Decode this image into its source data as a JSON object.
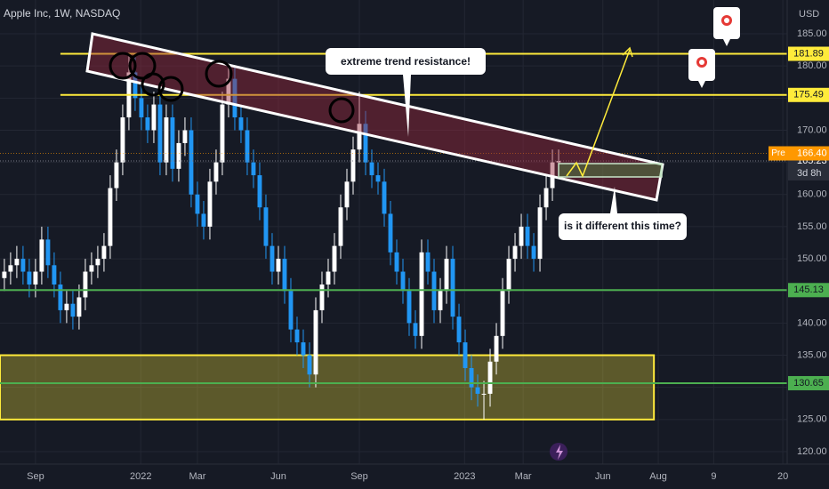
{
  "chart_data": {
    "type": "candlestick",
    "title": "Apple Inc, 1W, NASDAQ",
    "currency": "USD",
    "x": [
      -5,
      -4,
      -3,
      -2,
      -1,
      0,
      1,
      2,
      3,
      4,
      5,
      6,
      7,
      8,
      9,
      10,
      11,
      12,
      13,
      14,
      15,
      16,
      17,
      18,
      19,
      20,
      21,
      22,
      23,
      24,
      25,
      26,
      27,
      28,
      29,
      30,
      31,
      32,
      33,
      34,
      35,
      36,
      37,
      38,
      39,
      40,
      41,
      42,
      43,
      44,
      45,
      46,
      47,
      48,
      49,
      50,
      51,
      52,
      53,
      54,
      55,
      56,
      57,
      58,
      59,
      60,
      61,
      62,
      63,
      64,
      65,
      66,
      67,
      68,
      69,
      70,
      71,
      72,
      73,
      74,
      75,
      76,
      77,
      78,
      79,
      80,
      81,
      82,
      83,
      84
    ],
    "open": [
      147,
      148,
      149,
      150,
      148,
      146,
      148,
      153,
      149,
      146,
      142,
      143,
      141,
      144,
      148,
      149,
      150,
      152,
      161,
      165,
      172,
      179,
      175,
      172,
      170,
      174,
      165,
      172,
      164,
      168,
      170,
      160,
      157,
      155,
      162,
      165,
      174,
      178,
      172,
      170,
      165,
      163,
      158,
      152,
      148,
      150,
      145,
      139,
      137,
      135,
      132,
      142,
      146,
      148,
      152,
      158,
      162,
      167,
      171,
      165,
      163,
      162,
      157,
      151,
      148,
      145,
      140,
      138,
      151,
      148,
      142,
      145,
      150,
      141,
      137,
      133,
      130,
      129,
      129,
      134,
      138,
      145,
      150,
      152,
      155,
      152,
      150,
      158,
      161,
      165
    ],
    "high": [
      150,
      151,
      152,
      152,
      150,
      150,
      155,
      155,
      151,
      148,
      145,
      145,
      146,
      150,
      151,
      152,
      154,
      163,
      167,
      174,
      182,
      182,
      177,
      174,
      176,
      176,
      174,
      174,
      170,
      172,
      172,
      162,
      159,
      164,
      167,
      176,
      180,
      180,
      174,
      172,
      167,
      165,
      160,
      154,
      152,
      152,
      147,
      141,
      139,
      137,
      144,
      148,
      150,
      154,
      160,
      164,
      169,
      176,
      173,
      167,
      165,
      164,
      159,
      153,
      150,
      147,
      142,
      153,
      153,
      150,
      147,
      152,
      152,
      143,
      139,
      135,
      132,
      131,
      136,
      140,
      147,
      152,
      154,
      157,
      157,
      154,
      160,
      163,
      167,
      167
    ],
    "low": [
      145,
      146,
      147,
      146,
      144,
      144,
      146,
      147,
      144,
      140,
      140,
      139,
      139,
      142,
      146,
      147,
      148,
      150,
      159,
      163,
      170,
      173,
      170,
      168,
      168,
      163,
      163,
      162,
      162,
      166,
      158,
      155,
      153,
      153,
      160,
      163,
      172,
      170,
      168,
      163,
      161,
      156,
      150,
      146,
      146,
      143,
      137,
      135,
      133,
      130,
      130,
      140,
      144,
      146,
      150,
      156,
      160,
      165,
      163,
      161,
      160,
      155,
      149,
      146,
      143,
      138,
      136,
      136,
      146,
      140,
      140,
      143,
      139,
      135,
      131,
      128,
      127,
      125,
      127,
      132,
      136,
      143,
      148,
      150,
      150,
      148,
      148,
      156,
      159,
      163
    ],
    "close": [
      148,
      149,
      150,
      148,
      146,
      148,
      153,
      149,
      146,
      142,
      143,
      141,
      144,
      148,
      149,
      150,
      152,
      161,
      165,
      172,
      179,
      175,
      172,
      170,
      174,
      165,
      172,
      164,
      168,
      170,
      160,
      157,
      155,
      162,
      165,
      174,
      178,
      172,
      170,
      165,
      163,
      158,
      152,
      148,
      150,
      145,
      139,
      137,
      135,
      132,
      142,
      146,
      148,
      152,
      158,
      162,
      167,
      171,
      165,
      163,
      162,
      157,
      151,
      148,
      145,
      140,
      138,
      151,
      148,
      142,
      145,
      150,
      141,
      137,
      133,
      130,
      129,
      129,
      134,
      138,
      145,
      150,
      152,
      155,
      152,
      150,
      158,
      161,
      165,
      165.23
    ],
    "up_color": "#ffffff",
    "down_color": "#2196f3",
    "xlim": [
      -5.7,
      120.7
    ],
    "xticks": [
      {
        "value": 0,
        "label": "Sep"
      },
      {
        "value": 16.9,
        "label": "2022"
      },
      {
        "value": 26,
        "label": "Mar"
      },
      {
        "value": 39,
        "label": "Jun"
      },
      {
        "value": 52,
        "label": "Sep"
      },
      {
        "value": 68.9,
        "label": "2023"
      },
      {
        "value": 78.3,
        "label": "Mar"
      },
      {
        "value": 91.1,
        "label": "Jun"
      },
      {
        "value": 100,
        "label": "Aug"
      },
      {
        "value": 108.9,
        "label": "9"
      },
      {
        "value": 120,
        "label": "20"
      }
    ],
    "ylim": [
      118.06,
      190.26
    ],
    "yticks": [
      {
        "value": 120,
        "label": "120.00"
      },
      {
        "value": 125,
        "label": "125.00"
      },
      {
        "value": 130,
        "label": "130.00"
      },
      {
        "value": 135,
        "label": "135.00"
      },
      {
        "value": 140,
        "label": "140.00"
      },
      {
        "value": 145,
        "label": "145.00"
      },
      {
        "value": 150,
        "label": "150.00"
      },
      {
        "value": 155,
        "label": "155.00"
      },
      {
        "value": 160,
        "label": "160.00"
      },
      {
        "value": 165,
        "label": "165.00"
      },
      {
        "value": 170,
        "label": "170.00"
      },
      {
        "value": 175,
        "label": "175.00"
      },
      {
        "value": 180,
        "label": "180.00"
      },
      {
        "value": 185,
        "label": "185.00"
      }
    ],
    "grid": true,
    "levels": [
      {
        "value": 181.89,
        "color": "#ffeb3b",
        "x_from": 4
      },
      {
        "value": 175.49,
        "color": "#ffeb3b",
        "x_from": 4
      },
      {
        "value": 145.13,
        "color": "#4caf50",
        "x_from": -5.7
      },
      {
        "value": 130.65,
        "color": "#4caf50",
        "x_from": -5.7
      }
    ],
    "zone": {
      "low": 125,
      "high": 135,
      "x_to": 99.3,
      "color": "#ffeb3b"
    },
    "last_price": 165.23,
    "countdown": "3d 8h",
    "pre_market": {
      "label": "Pre",
      "price": {
        "value": 166.4,
        "label": "166.40"
      }
    },
    "annotations": [
      "extreme trend resistance!",
      "is it different this time?"
    ]
  }
}
